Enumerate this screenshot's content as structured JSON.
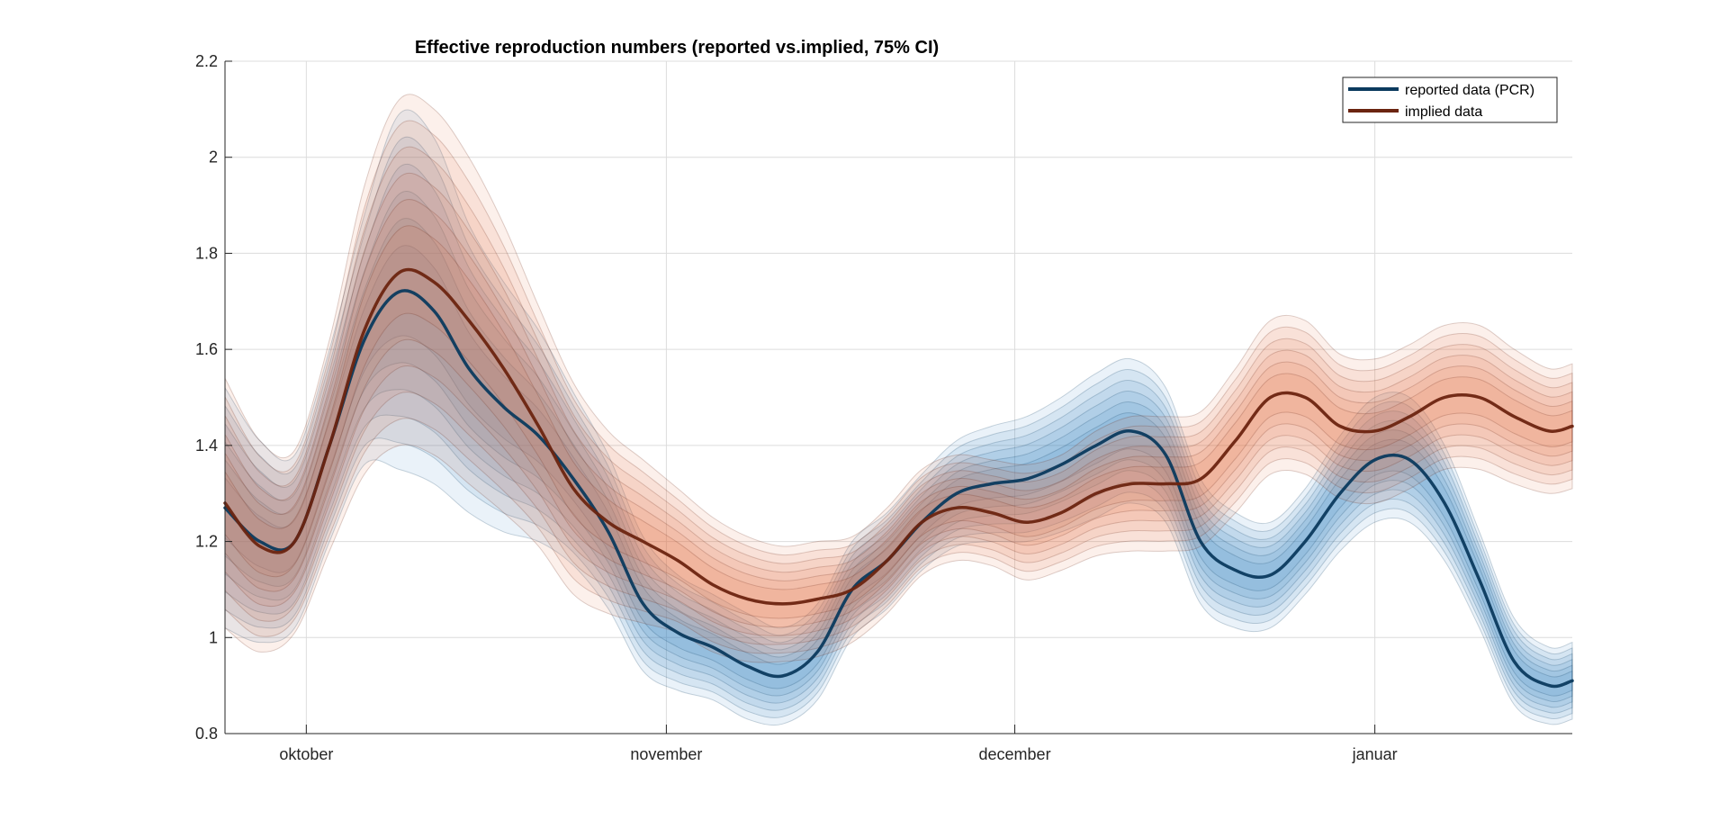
{
  "chart_data": {
    "type": "line",
    "title": "Effective reproduction numbers (reported vs.implied, 75% CI)",
    "xlabel": "",
    "ylabel": "",
    "ylim": [
      0.8,
      2.2
    ],
    "yticks": [
      0.8,
      1,
      1.2,
      1.4,
      1.6,
      1.8,
      2,
      2.2
    ],
    "ytick_labels": [
      "0.8",
      "1",
      "1.2",
      "1.4",
      "1.6",
      "1.8",
      "2",
      "2.2"
    ],
    "x_start": "2020-09-24",
    "x_end": "2021-01-18",
    "xticks": [
      "2020-10-01",
      "2020-11-01",
      "2020-12-01",
      "2021-01-01"
    ],
    "xtick_labels": [
      "oktober",
      "november",
      "december",
      "januar"
    ],
    "grid": true,
    "legend_position": "top-right",
    "series": [
      {
        "name": "reported data (PCR)",
        "color": "#0b3a5e",
        "band_color": "#2e7fc0",
        "x": [
          "2020-09-24",
          "2020-09-27",
          "2020-09-30",
          "2020-10-03",
          "2020-10-06",
          "2020-10-09",
          "2020-10-12",
          "2020-10-15",
          "2020-10-18",
          "2020-10-21",
          "2020-10-24",
          "2020-10-27",
          "2020-10-30",
          "2020-11-02",
          "2020-11-05",
          "2020-11-08",
          "2020-11-11",
          "2020-11-14",
          "2020-11-17",
          "2020-11-20",
          "2020-11-23",
          "2020-11-26",
          "2020-11-29",
          "2020-12-02",
          "2020-12-05",
          "2020-12-08",
          "2020-12-11",
          "2020-12-14",
          "2020-12-17",
          "2020-12-20",
          "2020-12-23",
          "2020-12-26",
          "2020-12-29",
          "2021-01-01",
          "2021-01-04",
          "2021-01-07",
          "2021-01-10",
          "2021-01-13",
          "2021-01-16",
          "2021-01-18"
        ],
        "values": [
          1.27,
          1.2,
          1.2,
          1.4,
          1.62,
          1.72,
          1.68,
          1.56,
          1.48,
          1.42,
          1.33,
          1.22,
          1.07,
          1.01,
          0.98,
          0.94,
          0.92,
          0.97,
          1.1,
          1.16,
          1.24,
          1.3,
          1.32,
          1.33,
          1.36,
          1.4,
          1.43,
          1.38,
          1.2,
          1.14,
          1.13,
          1.2,
          1.3,
          1.37,
          1.37,
          1.28,
          1.12,
          0.95,
          0.9,
          0.91
        ],
        "ci_half": [
          0.25,
          0.21,
          0.18,
          0.2,
          0.26,
          0.37,
          0.36,
          0.3,
          0.26,
          0.22,
          0.18,
          0.16,
          0.14,
          0.12,
          0.11,
          0.11,
          0.1,
          0.1,
          0.1,
          0.1,
          0.1,
          0.11,
          0.12,
          0.13,
          0.14,
          0.15,
          0.15,
          0.14,
          0.13,
          0.12,
          0.11,
          0.11,
          0.12,
          0.13,
          0.13,
          0.12,
          0.1,
          0.09,
          0.08,
          0.08
        ]
      },
      {
        "name": "implied data",
        "color": "#6b2410",
        "band_color": "#e0703f",
        "x": [
          "2020-09-24",
          "2020-09-27",
          "2020-09-30",
          "2020-10-03",
          "2020-10-06",
          "2020-10-09",
          "2020-10-12",
          "2020-10-15",
          "2020-10-18",
          "2020-10-21",
          "2020-10-24",
          "2020-10-27",
          "2020-10-30",
          "2020-11-02",
          "2020-11-05",
          "2020-11-08",
          "2020-11-11",
          "2020-11-14",
          "2020-11-17",
          "2020-11-20",
          "2020-11-23",
          "2020-11-26",
          "2020-11-29",
          "2020-12-02",
          "2020-12-05",
          "2020-12-08",
          "2020-12-11",
          "2020-12-14",
          "2020-12-17",
          "2020-12-20",
          "2020-12-23",
          "2020-12-26",
          "2020-12-29",
          "2021-01-01",
          "2021-01-04",
          "2021-01-07",
          "2021-01-10",
          "2021-01-13",
          "2021-01-16",
          "2021-01-18"
        ],
        "values": [
          1.28,
          1.19,
          1.2,
          1.4,
          1.64,
          1.76,
          1.74,
          1.66,
          1.56,
          1.44,
          1.31,
          1.24,
          1.2,
          1.16,
          1.11,
          1.08,
          1.07,
          1.08,
          1.1,
          1.16,
          1.24,
          1.27,
          1.26,
          1.24,
          1.26,
          1.3,
          1.32,
          1.32,
          1.33,
          1.41,
          1.5,
          1.5,
          1.44,
          1.43,
          1.46,
          1.5,
          1.5,
          1.46,
          1.43,
          1.44
        ],
        "ci_half": [
          0.26,
          0.22,
          0.19,
          0.22,
          0.3,
          0.36,
          0.36,
          0.34,
          0.3,
          0.25,
          0.22,
          0.19,
          0.17,
          0.15,
          0.14,
          0.13,
          0.12,
          0.12,
          0.11,
          0.11,
          0.11,
          0.11,
          0.11,
          0.12,
          0.12,
          0.13,
          0.14,
          0.14,
          0.14,
          0.15,
          0.16,
          0.16,
          0.15,
          0.15,
          0.15,
          0.15,
          0.15,
          0.14,
          0.13,
          0.13
        ]
      }
    ]
  }
}
